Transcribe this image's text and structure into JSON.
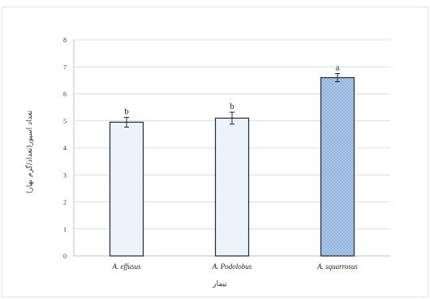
{
  "chart_data": {
    "type": "bar",
    "categories": [
      "A. effusus",
      "A. Podolobus",
      "A. squarrosus"
    ],
    "values": [
      4.95,
      5.1,
      6.6
    ],
    "error": [
      0.18,
      0.22,
      0.15
    ],
    "significance_letters": [
      "b",
      "b",
      "a"
    ],
    "xlabel": "تیمار",
    "ylabel": "تعداد اسپور(تعداد/گرم بهار)",
    "ylim": [
      0,
      8
    ],
    "yticks": [
      "0",
      "1",
      "2",
      "3",
      "4",
      "5",
      "6",
      "7",
      "8"
    ],
    "grid": true,
    "legend": "none",
    "colors": {
      "bar_light": "#f4f8fc",
      "bar_dark": "#a9c7e9",
      "bar_outline": "#1f2a44",
      "dots_light": "#b7c9de",
      "dots_dark": "#5f86b8",
      "gridline": "#dcdcdc",
      "axis": "#bfbfbf",
      "text": "#333333"
    }
  }
}
